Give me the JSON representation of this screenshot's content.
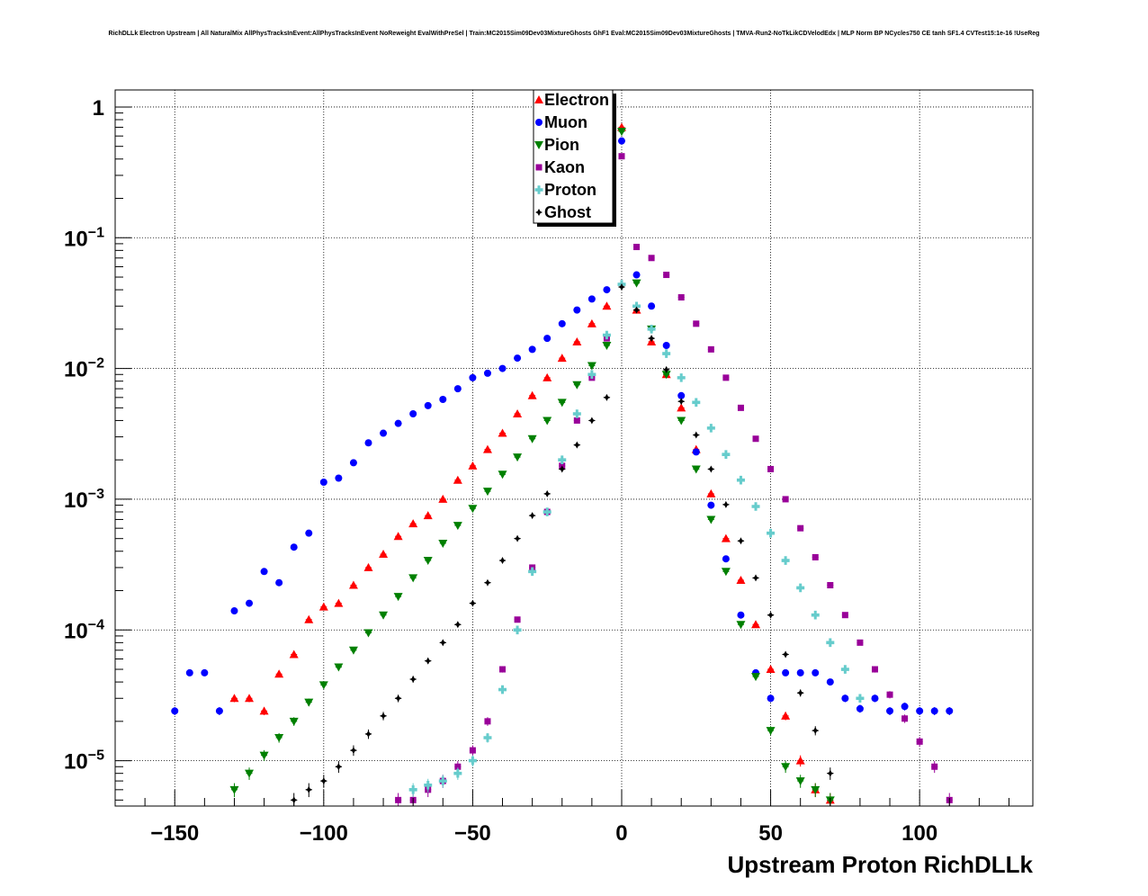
{
  "chart_data": {
    "type": "scatter",
    "title": "RichDLLk Electron Upstream | All NaturalMix AllPhysTracksInEvent:AllPhysTracksInEvent NoReweight EvalWithPreSel | Train:MC2015Sim09Dev03MixtureGhosts GhF1 Eval:MC2015Sim09Dev03MixtureGhosts | TMVA-Run2-NoTkLikCDVelodEdx | MLP Norm BP NCycles750 CE tanh SF1.4 CVTest15:1e-16 !UseReg",
    "xlabel": "Upstream Proton RichDLLk",
    "ylabel": "",
    "xlim": [
      -170,
      138
    ],
    "ylim": [
      4.5e-06,
      1.35
    ],
    "yscale": "log",
    "grid": true,
    "legend_position": "top-center",
    "x_ticks": [
      -150,
      -100,
      -50,
      0,
      50,
      100
    ],
    "x_tick_labels": [
      "−150",
      "−100",
      "−50",
      "0",
      "50",
      "100"
    ],
    "y_ticks": [
      1,
      0.1,
      0.01,
      0.001,
      0.0001,
      1e-05
    ],
    "y_tick_labels": [
      {
        "base": "1",
        "exp": ""
      },
      {
        "base": "10",
        "exp": "−1"
      },
      {
        "base": "10",
        "exp": "−2"
      },
      {
        "base": "10",
        "exp": "−3"
      },
      {
        "base": "10",
        "exp": "−4"
      },
      {
        "base": "10",
        "exp": "−5"
      }
    ],
    "series": [
      {
        "name": "Electron",
        "color": "#ff0000",
        "marker": "triangle-up",
        "x": [
          -130,
          -125,
          -120,
          -115,
          -110,
          -105,
          -100,
          -95,
          -90,
          -85,
          -80,
          -75,
          -70,
          -65,
          -60,
          -55,
          -50,
          -45,
          -40,
          -35,
          -30,
          -25,
          -20,
          -15,
          -10,
          -5,
          0,
          5,
          10,
          15,
          20,
          25,
          30,
          35,
          40,
          45,
          50,
          55,
          60,
          65,
          70
        ],
        "y": [
          3e-05,
          3e-05,
          2.4e-05,
          4.6e-05,
          6.5e-05,
          0.00012,
          0.00015,
          0.00016,
          0.00022,
          0.0003,
          0.00038,
          0.00052,
          0.00065,
          0.00075,
          0.001,
          0.0014,
          0.0018,
          0.0024,
          0.0032,
          0.0045,
          0.0062,
          0.0085,
          0.012,
          0.016,
          0.022,
          0.03,
          0.7,
          0.028,
          0.016,
          0.009,
          0.005,
          0.0024,
          0.0011,
          0.0005,
          0.00024,
          0.00011,
          5e-05,
          2.2e-05,
          1e-05,
          6e-06,
          5e-06
        ]
      },
      {
        "name": "Muon",
        "color": "#0000ff",
        "marker": "circle",
        "x": [
          -150,
          -145,
          -140,
          -135,
          -130,
          -125,
          -120,
          -115,
          -110,
          -105,
          -100,
          -95,
          -90,
          -85,
          -80,
          -75,
          -70,
          -65,
          -60,
          -55,
          -50,
          -45,
          -40,
          -35,
          -30,
          -25,
          -20,
          -15,
          -10,
          -5,
          0,
          5,
          10,
          15,
          20,
          25,
          30,
          35,
          40,
          45,
          50,
          55,
          60,
          65,
          70,
          75,
          80,
          85,
          90,
          95,
          100,
          105,
          110
        ],
        "y": [
          2.4e-05,
          4.7e-05,
          4.7e-05,
          2.4e-05,
          0.00014,
          0.00016,
          0.00028,
          0.00023,
          0.00043,
          0.00055,
          0.00135,
          0.00145,
          0.0019,
          0.0027,
          0.0032,
          0.0038,
          0.0045,
          0.0052,
          0.0058,
          0.007,
          0.0085,
          0.0092,
          0.01,
          0.012,
          0.014,
          0.017,
          0.022,
          0.028,
          0.034,
          0.04,
          0.55,
          0.052,
          0.03,
          0.015,
          0.0062,
          0.0023,
          0.0009,
          0.00035,
          0.00013,
          4.7e-05,
          3e-05,
          4.7e-05,
          4.7e-05,
          4.7e-05,
          4e-05,
          3e-05,
          2.5e-05,
          3e-05,
          2.4e-05,
          2.6e-05,
          2.4e-05,
          2.4e-05,
          2.4e-05
        ]
      },
      {
        "name": "Pion",
        "color": "#008000",
        "marker": "triangle-down",
        "x": [
          -130,
          -125,
          -120,
          -115,
          -110,
          -105,
          -100,
          -95,
          -90,
          -85,
          -80,
          -75,
          -70,
          -65,
          -60,
          -55,
          -50,
          -45,
          -40,
          -35,
          -30,
          -25,
          -20,
          -15,
          -10,
          -5,
          0,
          5,
          10,
          15,
          20,
          25,
          30,
          35,
          40,
          45,
          50,
          55,
          60,
          65,
          70
        ],
        "y": [
          6e-06,
          8e-06,
          1.1e-05,
          1.5e-05,
          2e-05,
          2.8e-05,
          3.8e-05,
          5.2e-05,
          7e-05,
          9.5e-05,
          0.00013,
          0.00018,
          0.00025,
          0.00034,
          0.00046,
          0.00063,
          0.00085,
          0.00115,
          0.00155,
          0.0021,
          0.0029,
          0.004,
          0.0055,
          0.0075,
          0.0105,
          0.015,
          0.65,
          0.045,
          0.02,
          0.009,
          0.004,
          0.0017,
          0.0007,
          0.00028,
          0.00011,
          4.4e-05,
          1.7e-05,
          9e-06,
          7e-06,
          6e-06,
          5e-06
        ]
      },
      {
        "name": "Kaon",
        "color": "#990099",
        "marker": "square",
        "x": [
          -75,
          -70,
          -65,
          -60,
          -55,
          -50,
          -45,
          -40,
          -35,
          -30,
          -25,
          -20,
          -15,
          -10,
          -5,
          0,
          5,
          10,
          15,
          20,
          25,
          30,
          35,
          40,
          45,
          50,
          55,
          60,
          65,
          70,
          75,
          80,
          85,
          90,
          95,
          100,
          105,
          110
        ],
        "y": [
          5e-06,
          5e-06,
          6e-06,
          7e-06,
          9e-06,
          1.2e-05,
          2e-05,
          5e-05,
          0.00012,
          0.0003,
          0.0008,
          0.0018,
          0.004,
          0.0085,
          0.017,
          0.42,
          0.085,
          0.07,
          0.052,
          0.035,
          0.022,
          0.014,
          0.0085,
          0.005,
          0.0029,
          0.0017,
          0.001,
          0.0006,
          0.00036,
          0.00022,
          0.00013,
          8e-05,
          5e-05,
          3.2e-05,
          2.1e-05,
          1.4e-05,
          9e-06,
          5e-06
        ]
      },
      {
        "name": "Proton",
        "color": "#66cccc",
        "marker": "cross",
        "x": [
          -70,
          -65,
          -60,
          -55,
          -50,
          -45,
          -40,
          -35,
          -30,
          -25,
          -20,
          -15,
          -10,
          -5,
          0,
          5,
          10,
          15,
          20,
          25,
          30,
          35,
          40,
          45,
          50,
          55,
          60,
          65,
          70,
          75,
          80
        ],
        "y": [
          6e-06,
          6.5e-06,
          7e-06,
          8e-06,
          1e-05,
          1.5e-05,
          3.5e-05,
          0.0001,
          0.00028,
          0.0008,
          0.002,
          0.0045,
          0.009,
          0.018,
          0.044,
          0.03,
          0.02,
          0.013,
          0.0085,
          0.0055,
          0.0035,
          0.0022,
          0.0014,
          0.00088,
          0.00055,
          0.00034,
          0.00021,
          0.00013,
          8e-05,
          5e-05,
          3e-05
        ]
      },
      {
        "name": "Ghost",
        "color": "#000000",
        "marker": "star",
        "x": [
          -110,
          -105,
          -100,
          -95,
          -90,
          -85,
          -80,
          -75,
          -70,
          -65,
          -60,
          -55,
          -50,
          -45,
          -40,
          -35,
          -30,
          -25,
          -20,
          -15,
          -10,
          -5,
          0,
          5,
          10,
          15,
          20,
          25,
          30,
          35,
          40,
          45,
          50,
          55,
          60,
          65,
          70
        ],
        "y": [
          5e-06,
          6e-06,
          7e-06,
          9e-06,
          1.2e-05,
          1.6e-05,
          2.2e-05,
          3e-05,
          4.2e-05,
          5.8e-05,
          8e-05,
          0.00011,
          0.00016,
          0.00023,
          0.00034,
          0.0005,
          0.00075,
          0.0011,
          0.0017,
          0.0026,
          0.004,
          0.006,
          0.042,
          0.028,
          0.017,
          0.0098,
          0.0056,
          0.0031,
          0.0017,
          0.00091,
          0.00048,
          0.00025,
          0.00013,
          6.5e-05,
          3.3e-05,
          1.7e-05,
          8e-06
        ]
      }
    ]
  }
}
